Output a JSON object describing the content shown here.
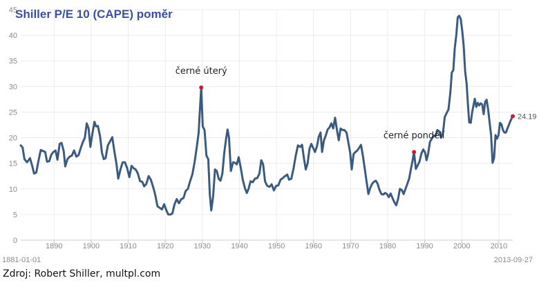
{
  "chart_data": {
    "type": "line",
    "title": "Shiller P/E 10 (CAPE) poměr",
    "xlabel": "",
    "ylabel": "",
    "xlim": [
      1881,
      2013.74
    ],
    "ylim": [
      0,
      45
    ],
    "yticks": [
      0,
      5,
      10,
      15,
      20,
      25,
      30,
      35,
      40,
      45
    ],
    "xticks": [
      1890,
      1900,
      1910,
      1920,
      1930,
      1940,
      1950,
      1960,
      1970,
      1980,
      1990,
      2000,
      2010
    ],
    "grid": true,
    "start_label": "1881-01-01",
    "end_label": "2013-09-27",
    "color": "#3a5a80",
    "marker_color": "#c0203a",
    "series": [
      {
        "values": [
          [
            1881,
            18.5
          ],
          [
            1881.5,
            18.1
          ],
          [
            1882,
            15.8
          ],
          [
            1882.7,
            15.2
          ],
          [
            1883.5,
            16.0
          ],
          [
            1884.1,
            14.5
          ],
          [
            1884.6,
            13.0
          ],
          [
            1885.2,
            13.2
          ],
          [
            1885.8,
            15.5
          ],
          [
            1886.4,
            17.6
          ],
          [
            1887,
            17.4
          ],
          [
            1887.6,
            17.2
          ],
          [
            1888.1,
            15.3
          ],
          [
            1888.7,
            15.4
          ],
          [
            1889.2,
            16.6
          ],
          [
            1889.8,
            17.2
          ],
          [
            1890.4,
            17.5
          ],
          [
            1890.9,
            15.7
          ],
          [
            1891.5,
            18.8
          ],
          [
            1892,
            19.0
          ],
          [
            1892.6,
            17.4
          ],
          [
            1893,
            14.4
          ],
          [
            1893.6,
            15.8
          ],
          [
            1894.2,
            16.3
          ],
          [
            1894.8,
            16.5
          ],
          [
            1895.4,
            17.5
          ],
          [
            1896,
            16.3
          ],
          [
            1896.6,
            16.6
          ],
          [
            1897.2,
            18.0
          ],
          [
            1897.8,
            19.2
          ],
          [
            1898.3,
            20.0
          ],
          [
            1898.8,
            22.8
          ],
          [
            1899.3,
            21.8
          ],
          [
            1899.8,
            18.2
          ],
          [
            1900.3,
            20.6
          ],
          [
            1900.9,
            23.1
          ],
          [
            1901.3,
            22.2
          ],
          [
            1901.8,
            22.3
          ],
          [
            1902.4,
            20.3
          ],
          [
            1902.9,
            17.1
          ],
          [
            1903.4,
            15.8
          ],
          [
            1903.9,
            16.0
          ],
          [
            1904.5,
            18.5
          ],
          [
            1905.1,
            19.3
          ],
          [
            1905.7,
            20.1
          ],
          [
            1906.2,
            17.6
          ],
          [
            1906.8,
            15.0
          ],
          [
            1907.3,
            12.0
          ],
          [
            1907.9,
            13.8
          ],
          [
            1908.5,
            15.2
          ],
          [
            1909.1,
            15.2
          ],
          [
            1909.7,
            14.1
          ],
          [
            1910.3,
            12.3
          ],
          [
            1910.9,
            14.5
          ],
          [
            1911.5,
            14.0
          ],
          [
            1912,
            13.8
          ],
          [
            1912.6,
            13.0
          ],
          [
            1913.2,
            11.5
          ],
          [
            1913.8,
            11.4
          ],
          [
            1914.3,
            10.5
          ],
          [
            1914.9,
            11.0
          ],
          [
            1915.5,
            12.5
          ],
          [
            1916.1,
            11.8
          ],
          [
            1916.8,
            10.2
          ],
          [
            1917.3,
            8.8
          ],
          [
            1917.9,
            6.6
          ],
          [
            1918.5,
            6.3
          ],
          [
            1919.1,
            6.0
          ],
          [
            1919.7,
            7.0
          ],
          [
            1920.3,
            5.8
          ],
          [
            1920.8,
            5.0
          ],
          [
            1921.4,
            5.0
          ],
          [
            1921.9,
            5.2
          ],
          [
            1922.5,
            7.0
          ],
          [
            1923.1,
            8.0
          ],
          [
            1923.7,
            7.2
          ],
          [
            1924.3,
            8.0
          ],
          [
            1924.9,
            8.2
          ],
          [
            1925.5,
            9.6
          ],
          [
            1926.1,
            10.0
          ],
          [
            1926.7,
            11.5
          ],
          [
            1927.3,
            12.8
          ],
          [
            1927.9,
            15.2
          ],
          [
            1928.5,
            18.2
          ],
          [
            1929,
            21.0
          ],
          [
            1929.3,
            25.0
          ],
          [
            1929.7,
            29.8
          ],
          [
            1930.1,
            22.2
          ],
          [
            1930.6,
            21.5
          ],
          [
            1931.1,
            16.5
          ],
          [
            1931.6,
            15.8
          ],
          [
            1932,
            9.0
          ],
          [
            1932.4,
            5.8
          ],
          [
            1932.9,
            8.5
          ],
          [
            1933.4,
            13.8
          ],
          [
            1933.9,
            13.5
          ],
          [
            1934.4,
            12.0
          ],
          [
            1934.9,
            11.6
          ],
          [
            1935.4,
            13.0
          ],
          [
            1935.9,
            17.0
          ],
          [
            1936.4,
            19.8
          ],
          [
            1936.8,
            21.6
          ],
          [
            1937.2,
            20.0
          ],
          [
            1937.7,
            13.5
          ],
          [
            1938.3,
            15.2
          ],
          [
            1938.8,
            15.1
          ],
          [
            1939.3,
            14.8
          ],
          [
            1939.8,
            16.2
          ],
          [
            1940.4,
            14.0
          ],
          [
            1940.9,
            11.8
          ],
          [
            1941.5,
            10.1
          ],
          [
            1942,
            9.2
          ],
          [
            1942.5,
            10.1
          ],
          [
            1943,
            11.5
          ],
          [
            1943.6,
            11.3
          ],
          [
            1944.2,
            12.0
          ],
          [
            1944.8,
            12.1
          ],
          [
            1945.4,
            13.0
          ],
          [
            1945.9,
            15.6
          ],
          [
            1946.4,
            14.8
          ],
          [
            1946.9,
            11.5
          ],
          [
            1947.5,
            10.6
          ],
          [
            1948.1,
            10.4
          ],
          [
            1948.7,
            10.9
          ],
          [
            1949.3,
            9.7
          ],
          [
            1949.9,
            10.6
          ],
          [
            1950.5,
            10.7
          ],
          [
            1951.1,
            11.8
          ],
          [
            1951.7,
            12.1
          ],
          [
            1952.3,
            12.5
          ],
          [
            1952.9,
            12.8
          ],
          [
            1953.4,
            11.8
          ],
          [
            1954,
            12.0
          ],
          [
            1954.6,
            14.0
          ],
          [
            1955.2,
            16.5
          ],
          [
            1955.8,
            18.5
          ],
          [
            1956.4,
            18.2
          ],
          [
            1956.9,
            18.6
          ],
          [
            1957.4,
            16.0
          ],
          [
            1957.9,
            13.8
          ],
          [
            1958.4,
            15.0
          ],
          [
            1958.9,
            17.8
          ],
          [
            1959.4,
            18.8
          ],
          [
            1959.9,
            18.0
          ],
          [
            1960.4,
            17.2
          ],
          [
            1960.9,
            18.3
          ],
          [
            1961.4,
            20.2
          ],
          [
            1961.9,
            21.0
          ],
          [
            1962.3,
            17.2
          ],
          [
            1962.8,
            19.5
          ],
          [
            1963.3,
            20.4
          ],
          [
            1963.8,
            21.6
          ],
          [
            1964.3,
            22.0
          ],
          [
            1964.8,
            22.8
          ],
          [
            1965.3,
            21.8
          ],
          [
            1965.8,
            23.9
          ],
          [
            1966.3,
            21.6
          ],
          [
            1966.8,
            19.5
          ],
          [
            1967.3,
            21.8
          ],
          [
            1967.8,
            21.5
          ],
          [
            1968.3,
            21.5
          ],
          [
            1968.9,
            21.0
          ],
          [
            1969.4,
            19.0
          ],
          [
            1969.9,
            17.0
          ],
          [
            1970.3,
            13.8
          ],
          [
            1970.8,
            16.8
          ],
          [
            1971.3,
            17.2
          ],
          [
            1971.8,
            17.5
          ],
          [
            1972.3,
            18.0
          ],
          [
            1972.8,
            18.6
          ],
          [
            1973.3,
            16.5
          ],
          [
            1973.8,
            14.0
          ],
          [
            1974.3,
            11.5
          ],
          [
            1974.8,
            9.0
          ],
          [
            1975.3,
            10.2
          ],
          [
            1975.8,
            11.0
          ],
          [
            1976.3,
            11.4
          ],
          [
            1976.8,
            11.6
          ],
          [
            1977.3,
            11.0
          ],
          [
            1977.8,
            9.8
          ],
          [
            1978.3,
            9.0
          ],
          [
            1978.8,
            8.9
          ],
          [
            1979.3,
            9.2
          ],
          [
            1979.8,
            9.0
          ],
          [
            1980.3,
            8.4
          ],
          [
            1980.8,
            9.1
          ],
          [
            1981.3,
            8.2
          ],
          [
            1981.8,
            7.4
          ],
          [
            1982.3,
            6.8
          ],
          [
            1982.8,
            8.0
          ],
          [
            1983.3,
            10.0
          ],
          [
            1983.8,
            9.8
          ],
          [
            1984.3,
            9.0
          ],
          [
            1984.8,
            10.0
          ],
          [
            1985.3,
            11.0
          ],
          [
            1985.8,
            12.0
          ],
          [
            1986.3,
            14.0
          ],
          [
            1986.7,
            15.5
          ],
          [
            1987.1,
            17.2
          ],
          [
            1987.6,
            13.9
          ],
          [
            1988.1,
            14.6
          ],
          [
            1988.6,
            15.4
          ],
          [
            1989.1,
            16.9
          ],
          [
            1989.6,
            17.7
          ],
          [
            1990.1,
            17.1
          ],
          [
            1990.5,
            15.6
          ],
          [
            1990.9,
            16.8
          ],
          [
            1991.4,
            19.2
          ],
          [
            1991.9,
            19.8
          ],
          [
            1992.4,
            20.4
          ],
          [
            1992.9,
            20.3
          ],
          [
            1993.4,
            21.5
          ],
          [
            1993.9,
            21.2
          ],
          [
            1994.4,
            20.0
          ],
          [
            1994.9,
            20.8
          ],
          [
            1995.4,
            24.0
          ],
          [
            1995.9,
            24.8
          ],
          [
            1996.4,
            25.5
          ],
          [
            1996.9,
            28.8
          ],
          [
            1997.3,
            32.7
          ],
          [
            1997.7,
            33.2
          ],
          [
            1998.1,
            37.5
          ],
          [
            1998.5,
            40.0
          ],
          [
            1998.9,
            43.5
          ],
          [
            1999.3,
            43.8
          ],
          [
            1999.7,
            43.2
          ],
          [
            2000.1,
            41.0
          ],
          [
            2000.5,
            38.0
          ],
          [
            2000.9,
            33.0
          ],
          [
            2001.3,
            30.5
          ],
          [
            2001.7,
            26.0
          ],
          [
            2002,
            23.0
          ],
          [
            2002.4,
            22.9
          ],
          [
            2002.8,
            25.0
          ],
          [
            2003.2,
            26.5
          ],
          [
            2003.5,
            27.6
          ],
          [
            2003.9,
            26.0
          ],
          [
            2004.3,
            26.8
          ],
          [
            2004.7,
            26.3
          ],
          [
            2005.1,
            26.7
          ],
          [
            2005.5,
            26.5
          ],
          [
            2005.9,
            24.6
          ],
          [
            2006.3,
            27.0
          ],
          [
            2006.7,
            27.4
          ],
          [
            2007.1,
            25.5
          ],
          [
            2007.5,
            23.0
          ],
          [
            2007.9,
            20.5
          ],
          [
            2008.3,
            15.1
          ],
          [
            2008.7,
            16.0
          ],
          [
            2009.1,
            20.5
          ],
          [
            2009.5,
            19.8
          ],
          [
            2009.9,
            20.5
          ],
          [
            2010.3,
            22.9
          ],
          [
            2010.7,
            22.6
          ],
          [
            2011.1,
            21.5
          ],
          [
            2011.5,
            21.0
          ],
          [
            2011.9,
            21.0
          ],
          [
            2012.3,
            21.8
          ],
          [
            2012.7,
            22.5
          ],
          [
            2013.2,
            23.4
          ],
          [
            2013.74,
            24.19
          ]
        ]
      }
    ],
    "annotations": [
      {
        "label": "černé úterý",
        "x": 1929.7,
        "y": 29.8
      },
      {
        "label": "černé pondělí",
        "x": 1987.1,
        "y": 17.2
      }
    ],
    "last_value_label": "24.19"
  },
  "footer": {
    "source": "Zdroj: Robert Shiller, multpl.com"
  }
}
